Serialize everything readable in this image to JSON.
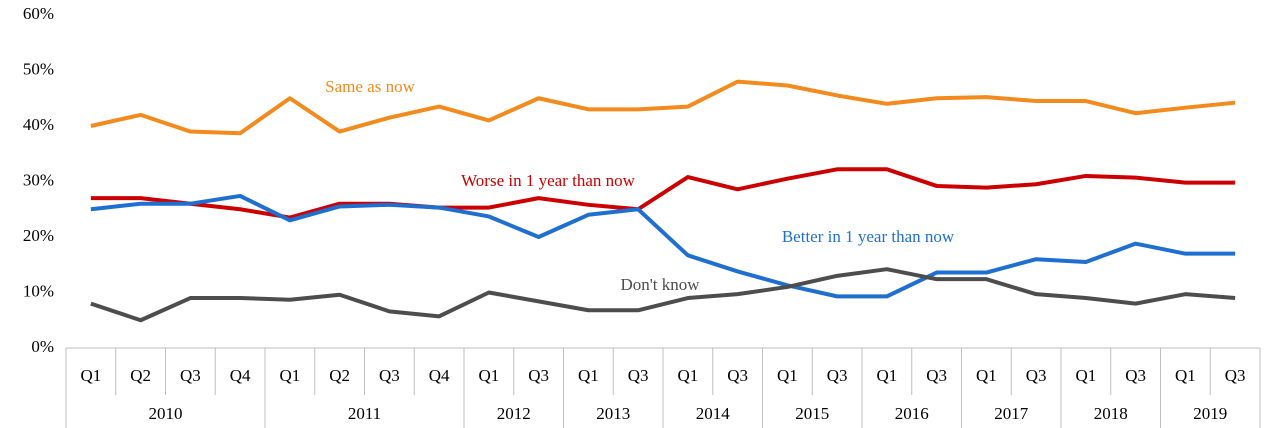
{
  "chart_data": {
    "type": "line",
    "categories": [
      "Q1",
      "Q2",
      "Q3",
      "Q4",
      "Q1",
      "Q2",
      "Q3",
      "Q4",
      "Q1",
      "Q3",
      "Q1",
      "Q3",
      "Q1",
      "Q3",
      "Q1",
      "Q3",
      "Q1",
      "Q3",
      "Q1",
      "Q3",
      "Q1",
      "Q3",
      "Q1",
      "Q3"
    ],
    "category_groups": [
      {
        "name": "2010",
        "count": 4
      },
      {
        "name": "2011",
        "count": 4
      },
      {
        "name": "2012",
        "count": 2
      },
      {
        "name": "2013",
        "count": 2
      },
      {
        "name": "2014",
        "count": 2
      },
      {
        "name": "2015",
        "count": 2
      },
      {
        "name": "2016",
        "count": 2
      },
      {
        "name": "2017",
        "count": 2
      },
      {
        "name": "2018",
        "count": 2
      },
      {
        "name": "2019",
        "count": 2
      }
    ],
    "series": [
      {
        "name": "Same as now",
        "color": "#f28a1e",
        "values": [
          40,
          42,
          39,
          38.7,
          45,
          39,
          41.5,
          43.5,
          41,
          45,
          43,
          43,
          43.5,
          48,
          47.3,
          45.5,
          44,
          45,
          45.2,
          44.5,
          44.5,
          42.3,
          43.3,
          44.2
        ]
      },
      {
        "name": "Worse in 1 year than now",
        "color": "#cc0000",
        "values": [
          27,
          27,
          26,
          25,
          23.5,
          26,
          26,
          25.3,
          25.3,
          27,
          25.8,
          25,
          30.8,
          28.6,
          30.5,
          32.2,
          32.2,
          29.2,
          28.9,
          29.5,
          31,
          30.7,
          29.8,
          29.8
        ]
      },
      {
        "name": "Better in 1 year than now",
        "color": "#1f6fd1",
        "values": [
          25,
          26,
          26,
          27.4,
          23,
          25.5,
          25.8,
          25.3,
          23.7,
          20,
          24,
          25,
          16.7,
          13.8,
          11.3,
          9.3,
          9.3,
          13.6,
          13.6,
          16,
          15.5,
          18.8,
          17,
          17
        ]
      },
      {
        "name": "Don't know",
        "color": "#4d4d4d",
        "values": [
          8,
          5,
          9,
          9,
          8.7,
          9.6,
          6.6,
          5.7,
          10,
          8.4,
          6.8,
          6.8,
          9,
          9.7,
          11,
          13,
          14.2,
          12.4,
          12.4,
          9.7,
          9,
          8,
          9.7,
          9
        ]
      }
    ],
    "ylim": [
      0,
      60
    ],
    "yticks": [
      {
        "value": 0,
        "label": "0%"
      },
      {
        "value": 10,
        "label": "10%"
      },
      {
        "value": 20,
        "label": "20%"
      },
      {
        "value": 30,
        "label": "30%"
      },
      {
        "value": 40,
        "label": "40%"
      },
      {
        "value": 50,
        "label": "50%"
      },
      {
        "value": 60,
        "label": "60%"
      }
    ],
    "grid": false
  }
}
